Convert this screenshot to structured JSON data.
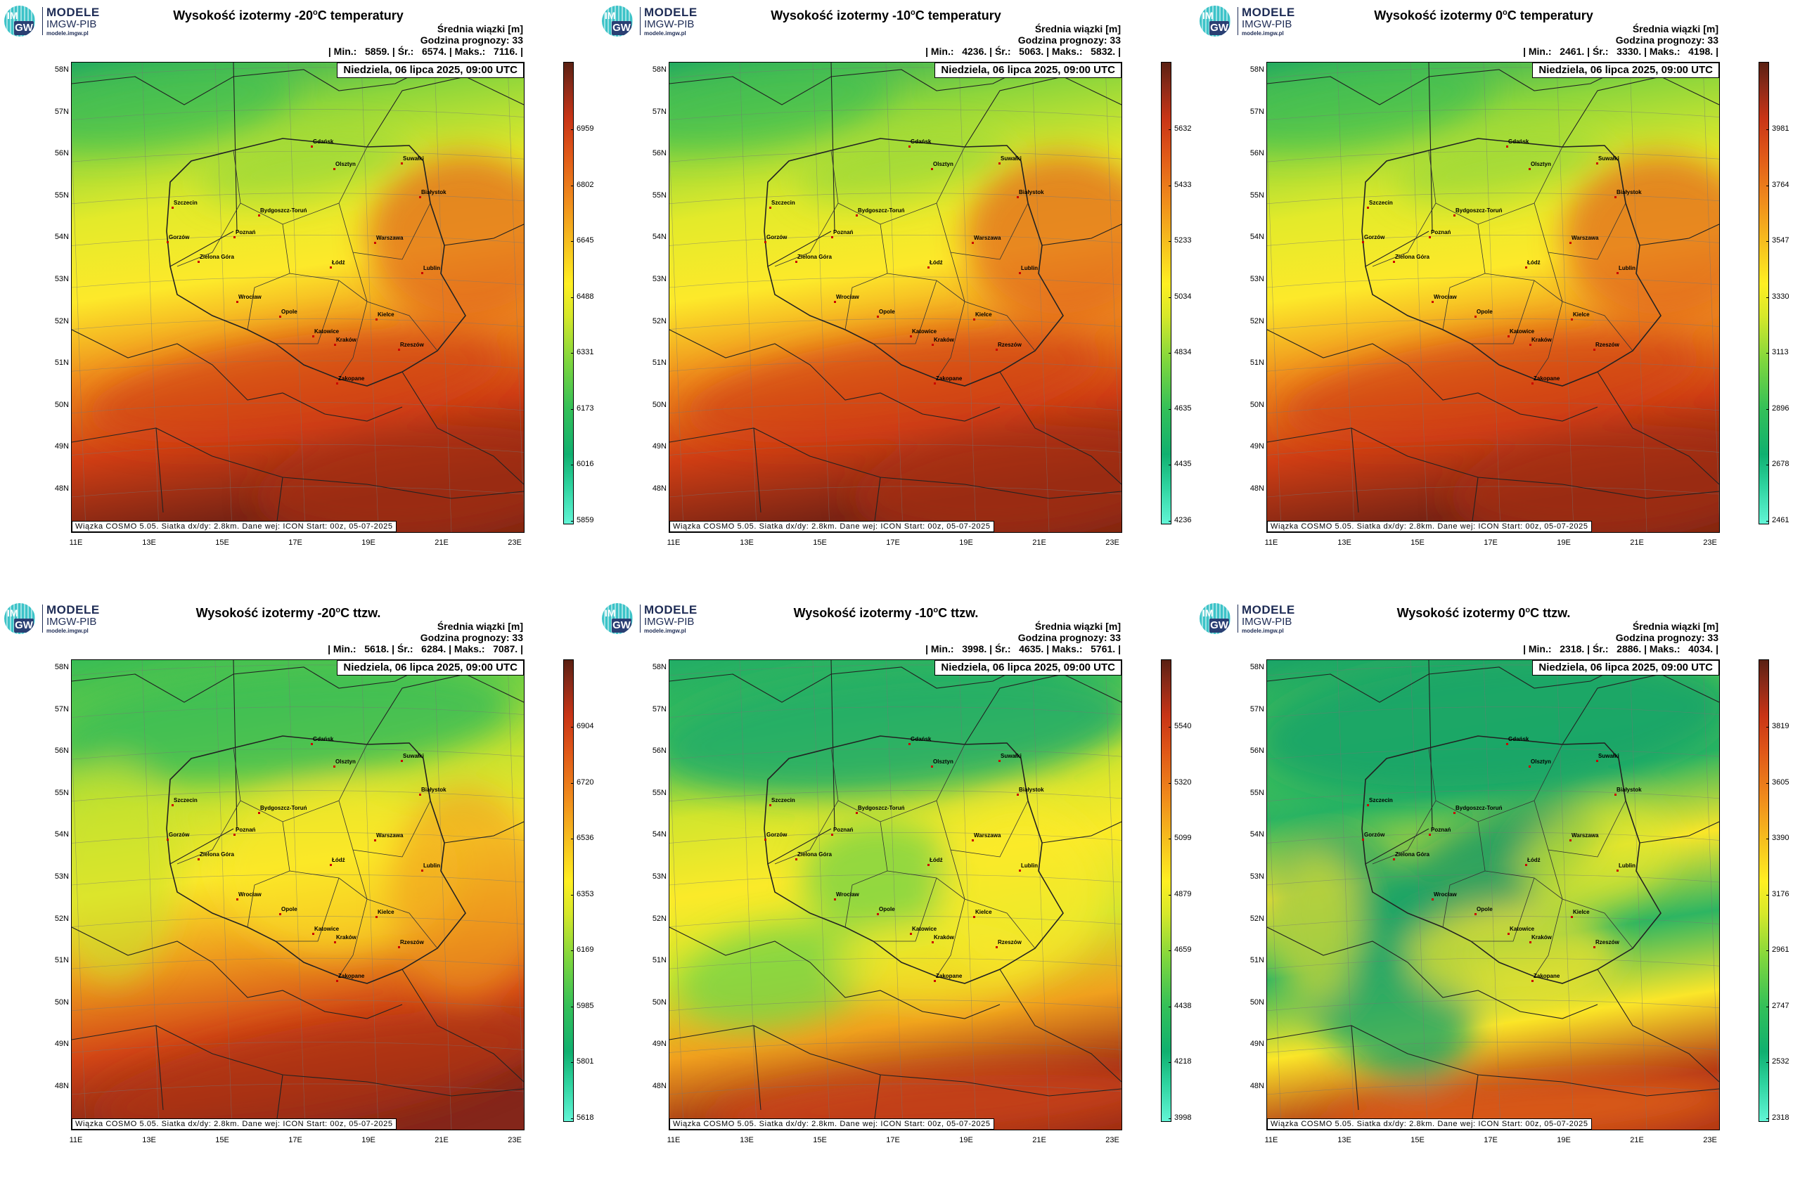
{
  "logo": {
    "line1": "MODELE",
    "line2": "IMGW-PIB",
    "line3": "modele.imgw.pl",
    "im": "IM",
    "gw": "GW"
  },
  "common": {
    "stat_label": "Średnia wiązki [m]",
    "prognosis": "Godzina prognozy: 33",
    "date": "Niedziela, 06 lipca 2025, 09:00 UTC",
    "info": "Wiązka COSMO 5.05. Siatka dx/dy: 2.8km. Dane wej: ICON Start: 00z, 05-07-2025",
    "lat_labels": [
      "58N",
      "57N",
      "56N",
      "55N",
      "54N",
      "53N",
      "52N",
      "51N",
      "50N",
      "49N",
      "48N"
    ],
    "lon_labels": [
      "11E",
      "13E",
      "15E",
      "17E",
      "19E",
      "21E",
      "23E"
    ],
    "cities": [
      "Gdańsk",
      "Olsztyn",
      "Suwałki",
      "Białystok",
      "Szczecin",
      "Bydgoszcz-Toruń",
      "Gorzów",
      "Poznań",
      "Warszawa",
      "Zielona Góra",
      "Łódź",
      "Lublin",
      "Wrocław",
      "Opole",
      "Kielce",
      "Katowice",
      "Kraków",
      "Rzeszów",
      "Zakopane"
    ]
  },
  "panels": [
    {
      "title_pre": "Wysokość izotermy -20",
      "title_post": "C temperatury",
      "sup": "o",
      "stats": "| Min.:   5859. | Śr.:   6574. | Maks.:   7116. |",
      "ticks": [
        "5859",
        "6016",
        "6173",
        "6331",
        "6488",
        "6645",
        "6802",
        "6959"
      ],
      "pattern": "warm"
    },
    {
      "title_pre": "Wysokość izotermy -10",
      "title_post": "C temperatury",
      "sup": "o",
      "stats": "| Min.:   4236. | Śr.:   5063. | Maks.:   5832. |",
      "ticks": [
        "4236",
        "4435",
        "4635",
        "4834",
        "5034",
        "5233",
        "5433",
        "5632"
      ],
      "pattern": "warm"
    },
    {
      "title_pre": "Wysokość izotermy 0",
      "title_post": "C temperatury",
      "sup": "o",
      "stats": "| Min.:   2461. | Śr.:   3330. | Maks.:   4198. |",
      "ticks": [
        "2461",
        "2678",
        "2896",
        "3113",
        "3330",
        "3547",
        "3764",
        "3981"
      ],
      "pattern": "warm"
    },
    {
      "title_pre": "Wysokość izotermy -20",
      "title_post": "C ttzw.",
      "sup": "o",
      "stats": "| Min.:   5618. | Śr.:   6284. | Maks.:   7087. |",
      "ticks": [
        "5618",
        "5801",
        "5985",
        "6169",
        "6353",
        "6536",
        "6720",
        "6904"
      ],
      "pattern": "mixed"
    },
    {
      "title_pre": "Wysokość izotermy -10",
      "title_post": "C ttzw.",
      "sup": "o",
      "stats": "| Min.:   3998. | Śr.:   4635. | Maks.:   5761. |",
      "ticks": [
        "3998",
        "4218",
        "4438",
        "4659",
        "4879",
        "5099",
        "5320",
        "5540"
      ],
      "pattern": "cool"
    },
    {
      "title_pre": "Wysokość izotermy 0",
      "title_post": "C ttzw.",
      "sup": "o",
      "stats": "| Min.:   2318. | Śr.:   2886. | Maks.:   4034. |",
      "ticks": [
        "2318",
        "2532",
        "2747",
        "2961",
        "3176",
        "3390",
        "3605",
        "3819"
      ],
      "pattern": "cold"
    }
  ]
}
